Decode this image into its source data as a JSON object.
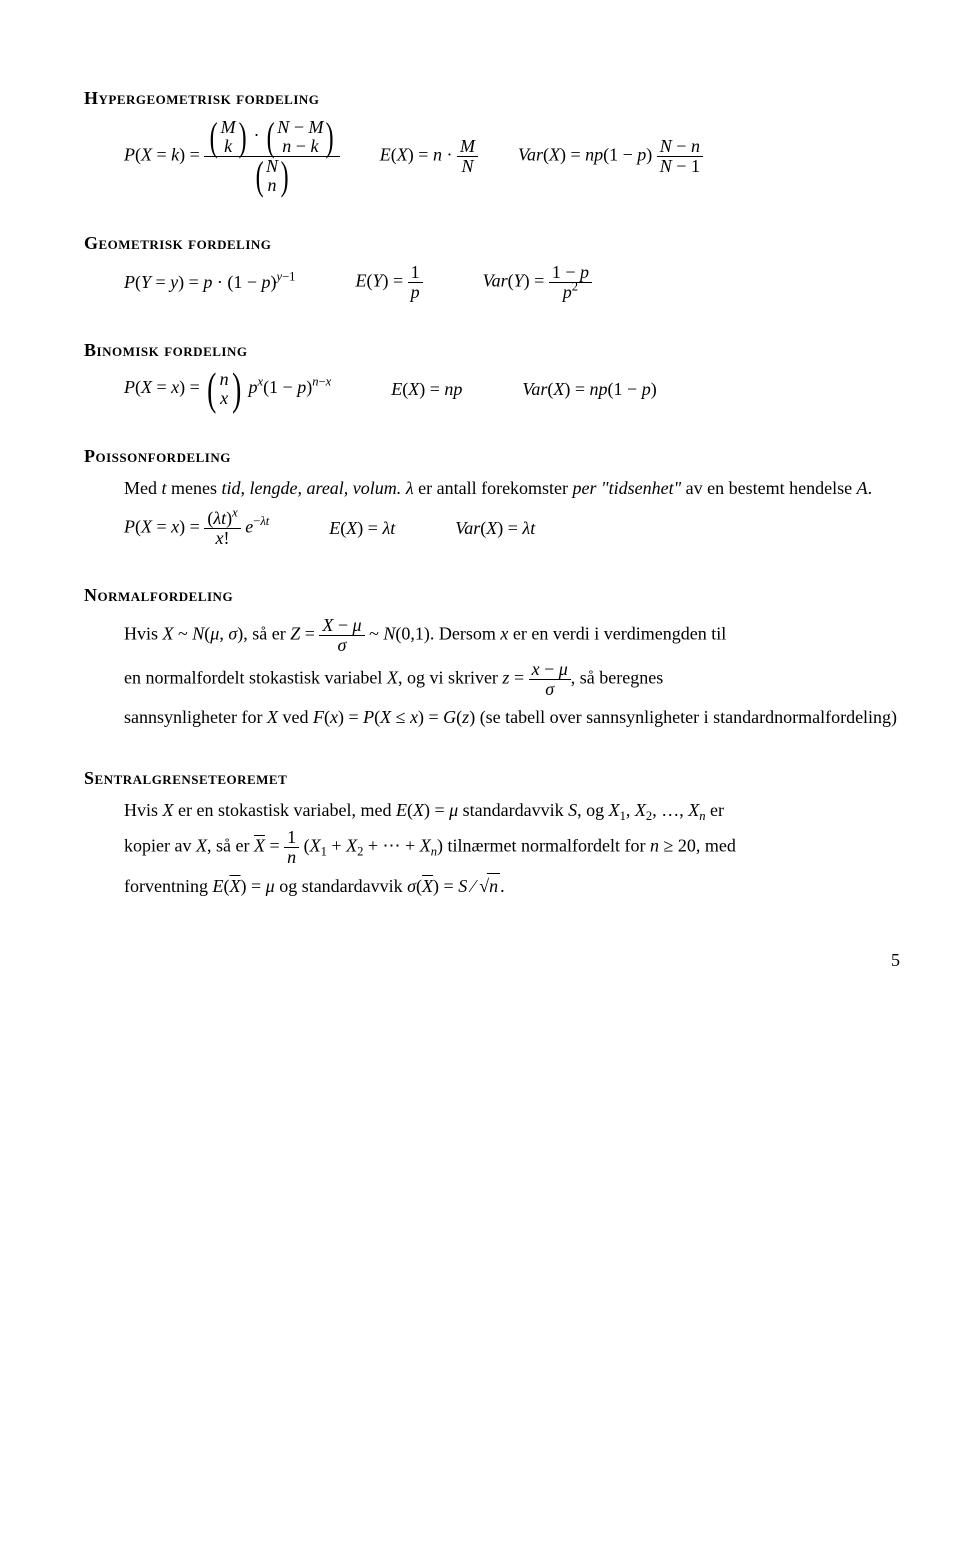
{
  "hyper": {
    "title": "Hypergeometrisk fordeling"
  },
  "geo": {
    "title": "Geometrisk fordeling"
  },
  "binom": {
    "title": "Binomisk fordeling"
  },
  "pois": {
    "title": "Poissonfordeling",
    "intro1": "Med ",
    "intro2": " menes ",
    "intro3": "tid, lengde, areal, volum.",
    "intro4": " er antall forekomster ",
    "intro5": "per \"tidsenhet\"",
    "intro6": " av en bestemt hendelse "
  },
  "norm": {
    "title": "Normalfordeling",
    "t1": "Hvis ",
    "t2": ", så er ",
    "t3": ". Dersom ",
    "t4": " er en verdi i verdimengden til",
    "t5": "en normalfordelt stokastisk variabel ",
    "t6": ", og vi skriver ",
    "t7": ", så beregnes",
    "t8": "sannsynligheter for ",
    "t9": " ved ",
    "t10": " (se tabell over sannsynligheter i standardnormalfordeling)"
  },
  "clt": {
    "title": "Sentralgrenseteoremet",
    "t1": "Hvis ",
    "t2": " er en stokastisk variabel, med ",
    "t3": " standardavvik ",
    "t4": ", og ",
    "t5": " er",
    "t6": "kopier av ",
    "t7": ", så er ",
    "t8": " tilnærmet normalfordelt for ",
    "t9": ", med",
    "t10": "forventning ",
    "t11": " og standardavvik "
  },
  "page": "5"
}
